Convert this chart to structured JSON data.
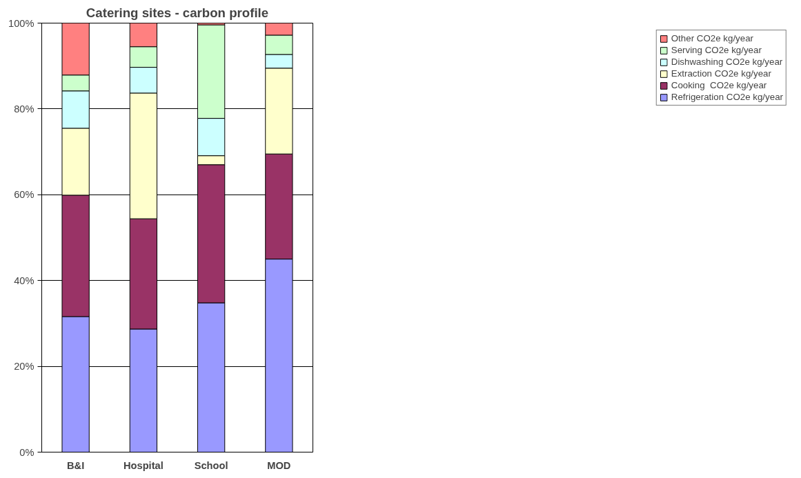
{
  "chart_data": {
    "type": "bar",
    "stacked": true,
    "title": "Catering sites - carbon profile",
    "categories": [
      "B&I",
      "Hospital",
      "School",
      "MOD"
    ],
    "series": [
      {
        "name": "Refrigeration CO2e kg/year",
        "color": "#9999ff",
        "values": [
          31.6,
          28.7,
          34.8,
          45.0
        ]
      },
      {
        "name": "Cooking  CO2e kg/year",
        "color": "#993366",
        "values": [
          28.3,
          25.7,
          32.2,
          24.5
        ]
      },
      {
        "name": "Extraction CO2e kg/year",
        "color": "#ffffcc",
        "values": [
          15.6,
          29.3,
          2.1,
          20.0
        ]
      },
      {
        "name": "Dishwashing CO2e kg/year",
        "color": "#ccffff",
        "values": [
          8.7,
          6.0,
          8.7,
          3.2
        ]
      },
      {
        "name": "Serving CO2e kg/year",
        "color": "#ccffcc",
        "values": [
          3.7,
          4.8,
          21.8,
          4.5
        ]
      },
      {
        "name": "Other CO2e kg/year",
        "color": "#ff8080",
        "values": [
          12.1,
          5.5,
          0.4,
          2.8
        ]
      }
    ],
    "ylim": [
      0,
      100
    ],
    "yticks": [
      {
        "value": 0,
        "label": "0%"
      },
      {
        "value": 20,
        "label": "20%"
      },
      {
        "value": 40,
        "label": "40%"
      },
      {
        "value": 60,
        "label": "60%"
      },
      {
        "value": 80,
        "label": "80%"
      },
      {
        "value": 100,
        "label": "100%"
      }
    ],
    "grid": "y",
    "legend": "right"
  }
}
